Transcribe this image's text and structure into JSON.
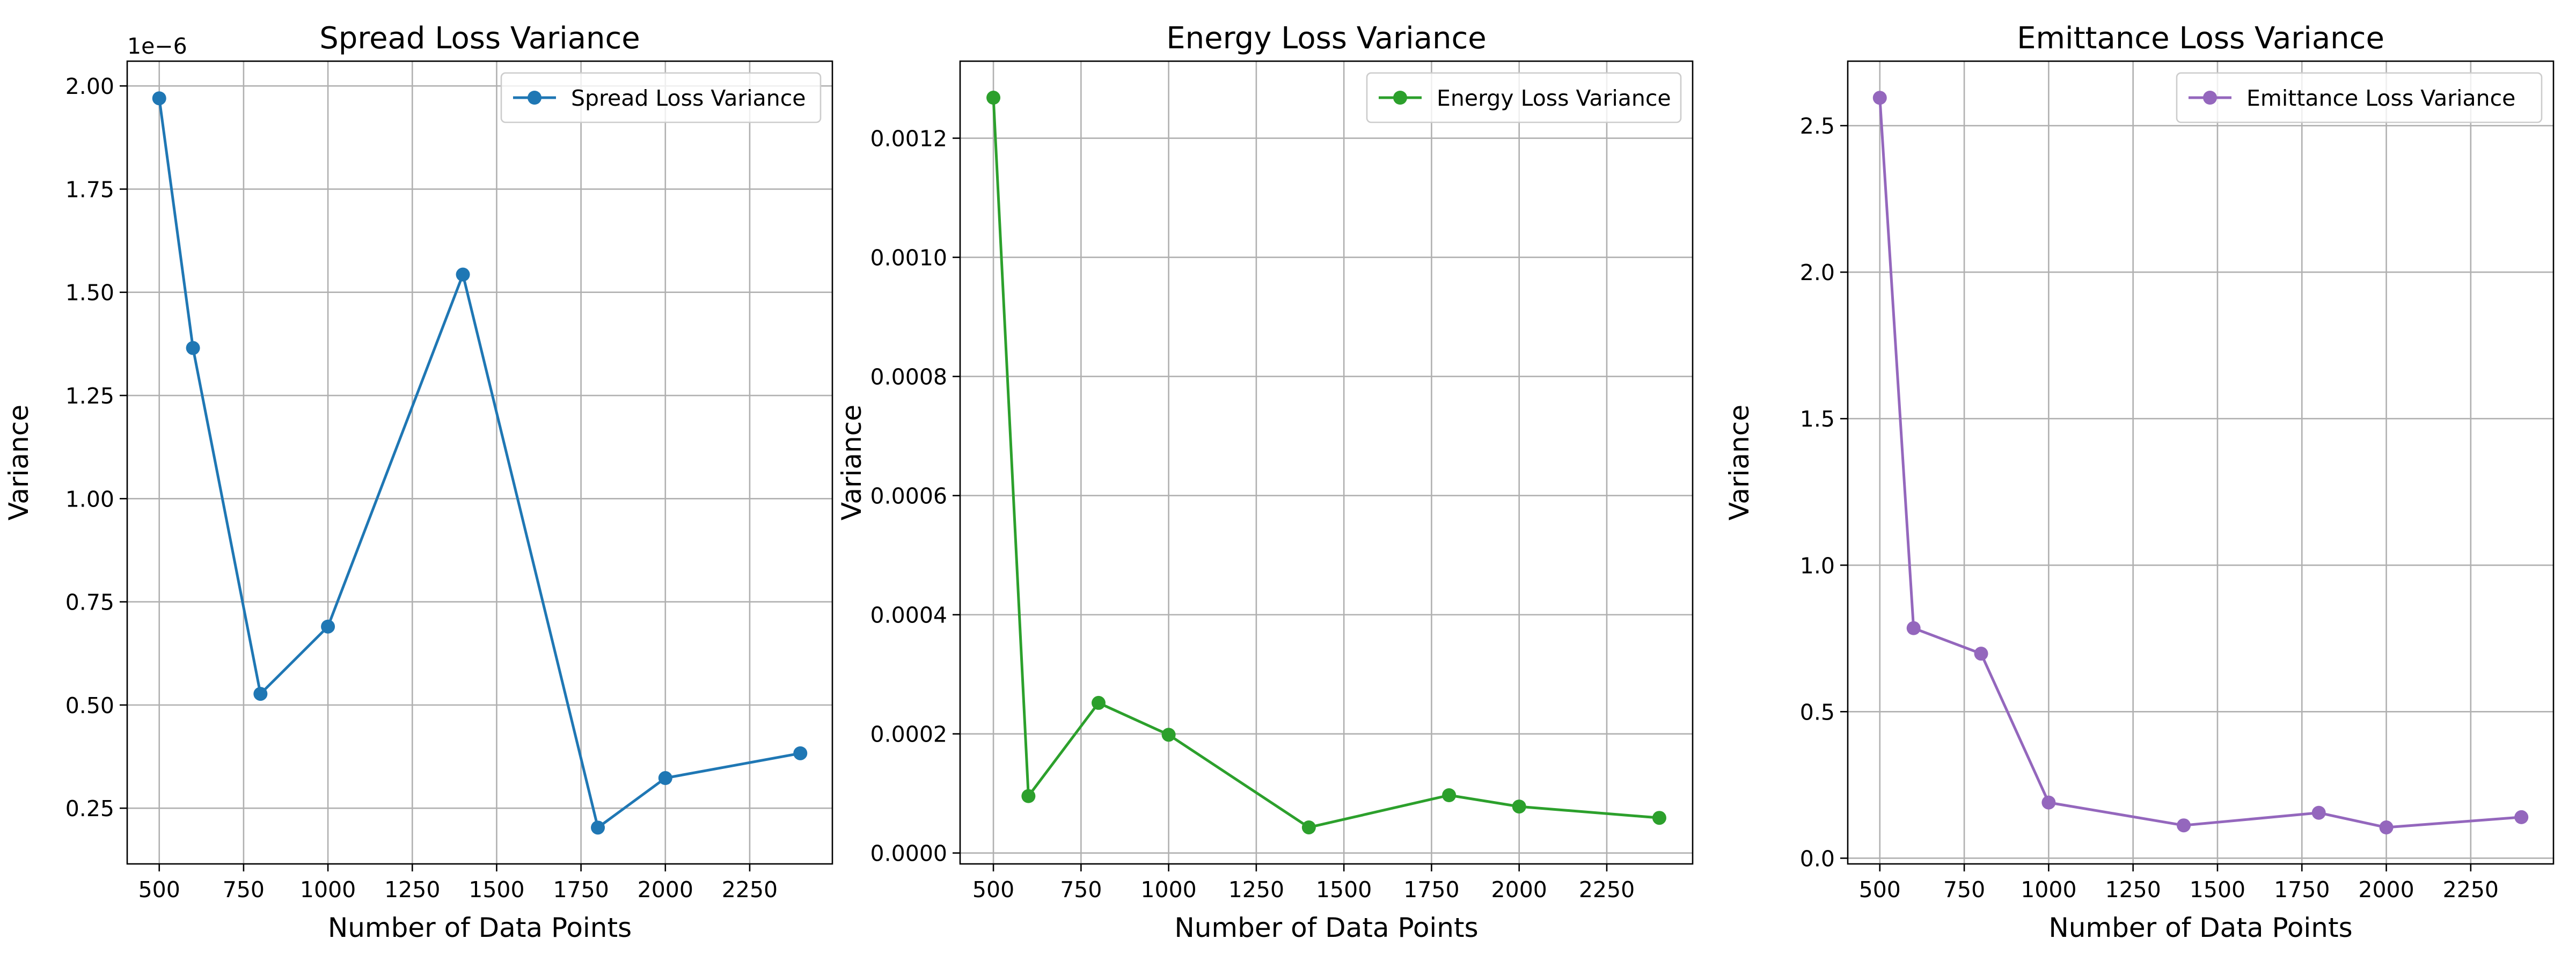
{
  "chart_data": [
    {
      "type": "line",
      "title": "Spread Loss Variance",
      "xlabel": "Number of Data Points",
      "ylabel": "Variance",
      "offset_text": "1e−6",
      "x": [
        500,
        600,
        800,
        1000,
        1400,
        1800,
        2000,
        2400
      ],
      "series": [
        {
          "name": "Spread Loss Variance",
          "values": [
            1.97e-06,
            1.365e-06,
            5.27e-07,
            6.9e-07,
            1.543e-06,
            2.03e-07,
            3.23e-07,
            3.83e-07
          ],
          "color": "#1f77b4"
        }
      ],
      "xlim": [
        405,
        2495
      ],
      "ylim": [
        1.15e-07,
        2.06e-06
      ],
      "xticks": [
        500,
        750,
        1000,
        1250,
        1500,
        1750,
        2000,
        2250
      ],
      "xtick_labels": [
        "500",
        "750",
        "1000",
        "1250",
        "1500",
        "1750",
        "2000",
        "2250"
      ],
      "yticks": [
        2.5e-07,
        5e-07,
        7.5e-07,
        1e-06,
        1.25e-06,
        1.5e-06,
        1.75e-06,
        2e-06
      ],
      "ytick_labels": [
        "0.25",
        "0.50",
        "0.75",
        "1.00",
        "1.25",
        "1.50",
        "1.75",
        "2.00"
      ],
      "grid": true,
      "legend": "upper right"
    },
    {
      "type": "line",
      "title": "Energy Loss Variance",
      "xlabel": "Number of Data Points",
      "ylabel": "Variance",
      "offset_text": "",
      "x": [
        500,
        600,
        800,
        1000,
        1400,
        1800,
        2000,
        2400
      ],
      "series": [
        {
          "name": "Energy Loss Variance",
          "values": [
            0.001268,
            9.55e-05,
            0.000252,
            0.0001985,
            4.3e-05,
            9.7e-05,
            7.8e-05,
            5.9e-05
          ],
          "color": "#2ca02c"
        }
      ],
      "xlim": [
        405,
        2495
      ],
      "ylim": [
        -1.83e-05,
        0.0013293
      ],
      "xticks": [
        500,
        750,
        1000,
        1250,
        1500,
        1750,
        2000,
        2250
      ],
      "xtick_labels": [
        "500",
        "750",
        "1000",
        "1250",
        "1500",
        "1750",
        "2000",
        "2250"
      ],
      "yticks": [
        0,
        0.0002,
        0.0004,
        0.0006,
        0.0008,
        0.001,
        0.0012
      ],
      "ytick_labels": [
        "0.0000",
        "0.0002",
        "0.0004",
        "0.0006",
        "0.0008",
        "0.0010",
        "0.0012"
      ],
      "grid": true,
      "legend": "upper right"
    },
    {
      "type": "line",
      "title": "Emittance Loss Variance",
      "xlabel": "Number of Data Points",
      "ylabel": "Variance",
      "offset_text": "",
      "x": [
        500,
        600,
        800,
        1000,
        1400,
        1800,
        2000,
        2400
      ],
      "series": [
        {
          "name": "Emittance Loss Variance",
          "values": [
            2.595,
            0.785,
            0.698,
            0.19,
            0.112,
            0.155,
            0.105,
            0.14
          ],
          "color": "#9467bd"
        }
      ],
      "xlim": [
        405,
        2495
      ],
      "ylim": [
        -0.0195,
        2.72
      ],
      "xticks": [
        500,
        750,
        1000,
        1250,
        1500,
        1750,
        2000,
        2250
      ],
      "xtick_labels": [
        "500",
        "750",
        "1000",
        "1250",
        "1500",
        "1750",
        "2000",
        "2250"
      ],
      "yticks": [
        0,
        0.5,
        1,
        1.5,
        2,
        2.5
      ],
      "ytick_labels": [
        "0.0",
        "0.5",
        "1.0",
        "1.5",
        "2.0",
        "2.5"
      ],
      "grid": true,
      "legend": "upper right"
    }
  ]
}
